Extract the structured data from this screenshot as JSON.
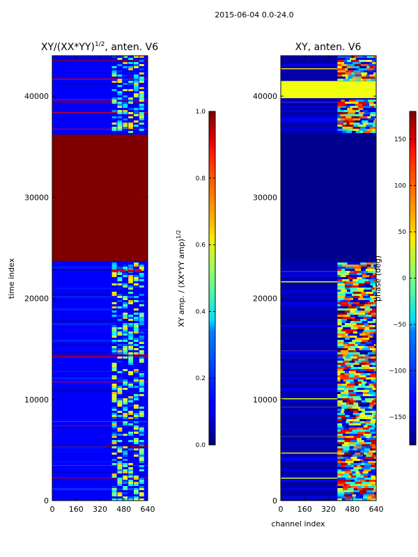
{
  "figure": {
    "suptitle": "2015-06-04 0.0-24.0",
    "xlabel": "channel index"
  },
  "chart_data": [
    {
      "type": "heatmap",
      "title": "XY/(XX*YY)^1/2, anten. V6",
      "title_main": "XY/(XX*YY)",
      "title_exp": "1/2",
      "title_rest": ", anten. V6",
      "xlabel": "",
      "ylabel": "time index",
      "xlim": [
        0,
        640
      ],
      "ylim": [
        0,
        44000
      ],
      "xticks": [
        0,
        160,
        320,
        480,
        640
      ],
      "yticks": [
        0,
        10000,
        20000,
        30000,
        40000
      ],
      "colormap": "jet",
      "colorbar": {
        "label": "XY amp. / (XX*YY amp)^1/2",
        "label_main": "XY amp. / (XX*YY amp)",
        "label_exp": "1/2",
        "range": [
          0.0,
          1.0
        ],
        "ticks": [
          "0.0",
          "0.2",
          "0.4",
          "0.6",
          "0.8",
          "1.0"
        ],
        "tick_values": [
          0.0,
          0.2,
          0.4,
          0.6,
          0.8,
          1.0
        ]
      },
      "saturated_block_time_range": [
        23700,
        36200
      ],
      "saturated_block_value": 1.0,
      "background_value": 0.12,
      "bright_channel_range": [
        400,
        620
      ]
    },
    {
      "type": "heatmap",
      "title": "XY, anten. V6",
      "xlabel": "channel index",
      "ylabel": "",
      "xlim": [
        0,
        640
      ],
      "ylim": [
        0,
        44000
      ],
      "xticks": [
        0,
        160,
        320,
        480,
        640
      ],
      "yticks": [
        0,
        10000,
        20000,
        30000,
        40000
      ],
      "colormap": "jet",
      "colorbar": {
        "label": "phase (deg)",
        "range": [
          -180,
          180
        ],
        "ticks": [
          "150",
          "100",
          "50",
          "0",
          "−50",
          "−100",
          "−150"
        ],
        "tick_values": [
          150,
          100,
          50,
          0,
          -50,
          -100,
          -150
        ]
      },
      "flat_phase_time_range": [
        23700,
        36200
      ],
      "flat_phase_value": -175,
      "bright_band_time_range": [
        39800,
        41500
      ],
      "bright_band_value": 40,
      "active_channel_range": [
        380,
        640
      ]
    }
  ]
}
